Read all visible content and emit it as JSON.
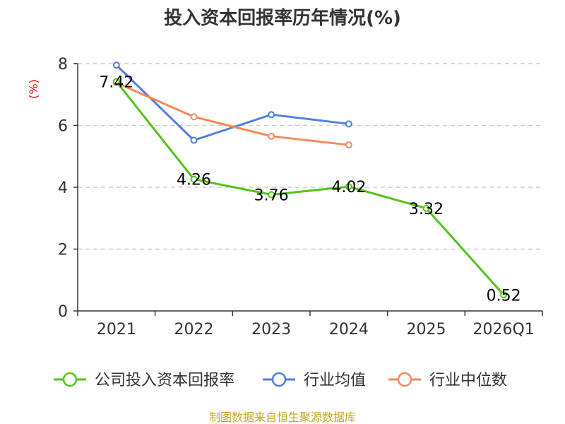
{
  "chart_data": {
    "type": "line",
    "title": "投入资本回报率历年情况(%)",
    "ylabel": "(%)",
    "categories": [
      "2021",
      "2022",
      "2023",
      "2024",
      "2025",
      "2026Q1"
    ],
    "ylim": [
      0,
      8
    ],
    "yticks": [
      0,
      2,
      4,
      6,
      8
    ],
    "grid": true,
    "series": [
      {
        "name": "公司投入资本回报率",
        "color": "#52c41a",
        "values": [
          7.42,
          4.26,
          3.76,
          4.02,
          3.32,
          0.52
        ],
        "labels": [
          "7.42",
          "4.26",
          "3.76",
          "4.02",
          "3.32",
          "0.52"
        ]
      },
      {
        "name": "行业均值",
        "color": "#4e7fde",
        "values": [
          7.95,
          5.52,
          6.35,
          6.05,
          null,
          null
        ]
      },
      {
        "name": "行业中位数",
        "color": "#f5895a",
        "values": [
          7.38,
          6.28,
          5.65,
          5.37,
          null,
          null
        ]
      }
    ],
    "legend_position": "bottom",
    "source": "制图数据来自恒生聚源数据库"
  }
}
